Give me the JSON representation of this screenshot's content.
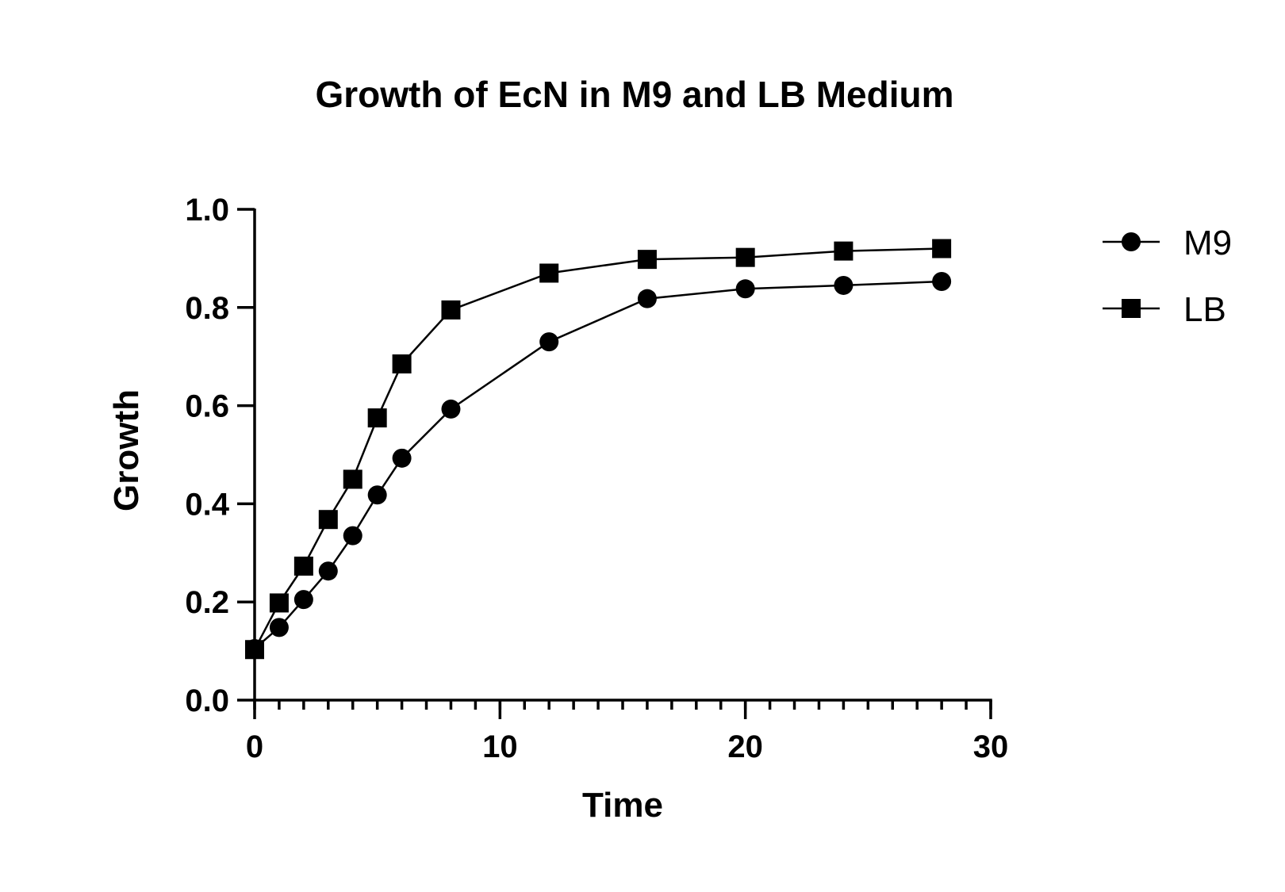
{
  "chart_data": {
    "type": "line",
    "title": "Growth of EcN in M9 and LB Medium",
    "xlabel": "Time",
    "ylabel": "Growth",
    "xlim": [
      0,
      30
    ],
    "ylim": [
      0.0,
      1.0
    ],
    "x_ticks": [
      "0",
      "10",
      "20",
      "30"
    ],
    "y_ticks": [
      "0.0",
      "0.2",
      "0.4",
      "0.6",
      "0.8",
      "1.0"
    ],
    "x_minor_step": 1,
    "grid": false,
    "legend_position": "top-right",
    "series": [
      {
        "name": "M9",
        "marker": "circle",
        "x": [
          0,
          1,
          2,
          3,
          4,
          5,
          6,
          8,
          12,
          16,
          20,
          24,
          28
        ],
        "values": [
          0.105,
          0.148,
          0.205,
          0.263,
          0.335,
          0.418,
          0.493,
          0.593,
          0.73,
          0.818,
          0.838,
          0.845,
          0.853
        ]
      },
      {
        "name": "LB",
        "marker": "square",
        "x": [
          0,
          1,
          2,
          3,
          4,
          5,
          6,
          8,
          12,
          16,
          20,
          24,
          28
        ],
        "values": [
          0.103,
          0.198,
          0.273,
          0.368,
          0.45,
          0.575,
          0.685,
          0.795,
          0.87,
          0.898,
          0.902,
          0.915,
          0.92
        ]
      }
    ]
  }
}
